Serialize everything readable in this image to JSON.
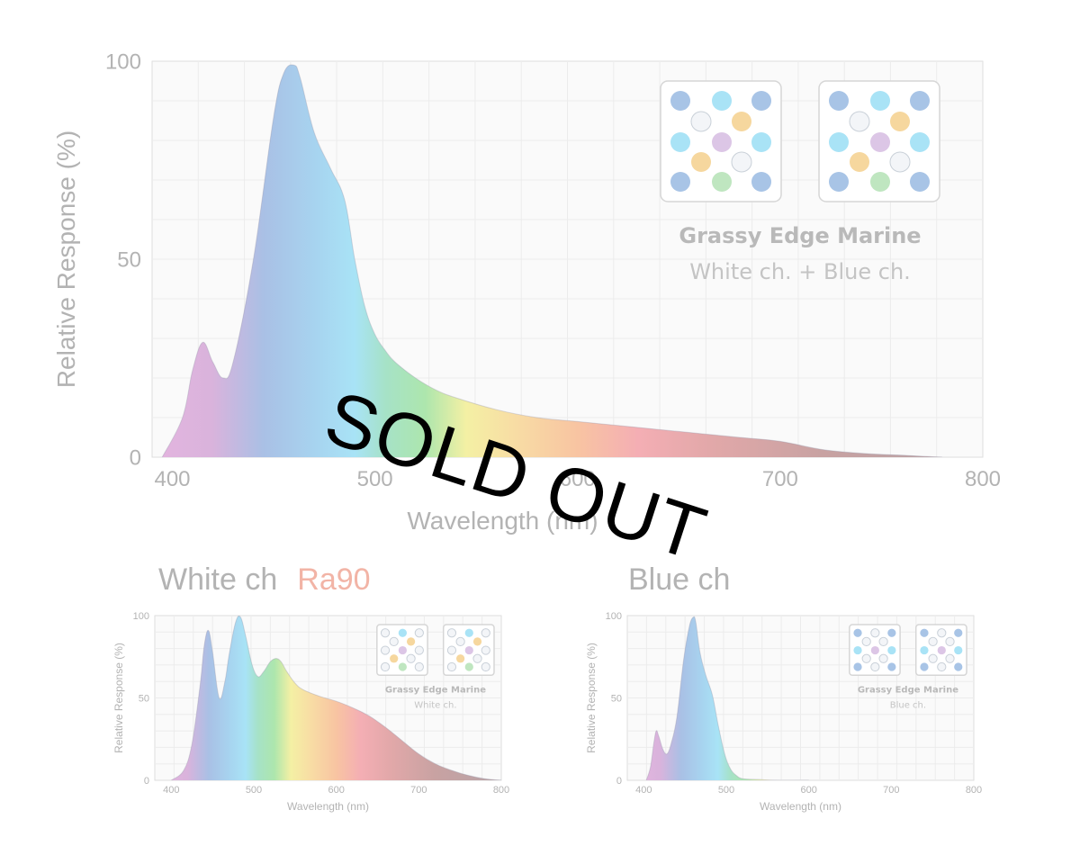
{
  "overlay": {
    "sold_out": "SOLD OUT"
  },
  "titles": {
    "white": "White ch",
    "white_ra": "Ra90",
    "blue": "Blue ch"
  },
  "colors": {
    "led_blue": "#a8c4e6",
    "led_cyan": "#a9e3f6",
    "led_orange": "#f6d79e",
    "led_pink": "#dcc6e6",
    "led_green": "#bfe6c0",
    "led_white": "#f3f5f8",
    "grid": "#ececec",
    "plot_bg": "#fafafa"
  },
  "chart_data": [
    {
      "id": "main",
      "type": "area",
      "xlabel": "Wavelength (nm)",
      "ylabel": "Relative Response (%)",
      "xlim": [
        390,
        800
      ],
      "ylim": [
        0,
        100
      ],
      "xticks": [
        400,
        500,
        600,
        700,
        800
      ],
      "yticks": [
        0,
        50,
        100
      ],
      "grid": true,
      "legend_position": "top-right",
      "legend": {
        "name": "Grassy Edge Marine",
        "channel": "White ch. + Blue ch."
      },
      "series": [
        {
          "x": [
            395,
            405,
            410,
            415,
            420,
            425,
            430,
            440,
            450,
            455,
            460,
            463,
            470,
            478,
            485,
            490,
            495,
            500,
            505,
            510,
            520,
            530,
            540,
            560,
            580,
            600,
            620,
            640,
            660,
            680,
            700,
            720,
            740,
            760,
            780
          ],
          "y": [
            0,
            10,
            22,
            29,
            24,
            20,
            24,
            50,
            86,
            97,
            99,
            96,
            82,
            73,
            65,
            50,
            38,
            31,
            27,
            24,
            20,
            17,
            15,
            12,
            10,
            9,
            8,
            7,
            6,
            5,
            4,
            2,
            1,
            0.5,
            0
          ]
        }
      ]
    },
    {
      "id": "white",
      "type": "area",
      "xlabel": "Wavelength (nm)",
      "ylabel": "Relative Response (%)",
      "xlim": [
        380,
        800
      ],
      "ylim": [
        0,
        100
      ],
      "xticks": [
        400,
        500,
        600,
        700,
        800
      ],
      "yticks": [
        0,
        50,
        100
      ],
      "grid": true,
      "legend_position": "top-right",
      "legend": {
        "name": "Grassy Edge Marine",
        "channel": "White ch."
      },
      "series": [
        {
          "x": [
            400,
            415,
            425,
            435,
            440,
            445,
            450,
            458,
            465,
            470,
            478,
            484,
            490,
            498,
            505,
            512,
            520,
            527,
            533,
            540,
            550,
            560,
            580,
            600,
            620,
            640,
            660,
            680,
            700,
            720,
            740,
            760,
            780,
            800
          ],
          "y": [
            0,
            6,
            22,
            58,
            82,
            91,
            78,
            50,
            60,
            76,
            96,
            99,
            88,
            70,
            63,
            66,
            72,
            74,
            72,
            66,
            59,
            55,
            51,
            48,
            44,
            39,
            32,
            24,
            16,
            10,
            6,
            3,
            1,
            0
          ]
        }
      ]
    },
    {
      "id": "blue",
      "type": "area",
      "xlabel": "Wavelength (nm)",
      "ylabel": "Relative Response (%)",
      "xlim": [
        380,
        800
      ],
      "ylim": [
        0,
        100
      ],
      "xticks": [
        400,
        500,
        600,
        700,
        800
      ],
      "yticks": [
        0,
        50,
        100
      ],
      "grid": true,
      "legend_position": "top-right",
      "legend": {
        "name": "Grassy Edge Marine",
        "channel": "Blue ch."
      },
      "series": [
        {
          "x": [
            403,
            408,
            412,
            415,
            418,
            423,
            428,
            433,
            440,
            448,
            455,
            460,
            463,
            468,
            475,
            483,
            490,
            498,
            505,
            512,
            520,
            540,
            560,
            600
          ],
          "y": [
            0,
            8,
            22,
            30,
            27,
            19,
            16,
            22,
            38,
            72,
            93,
            99,
            96,
            78,
            64,
            52,
            34,
            16,
            7,
            3,
            1,
            0.5,
            0,
            0
          ]
        }
      ]
    }
  ]
}
